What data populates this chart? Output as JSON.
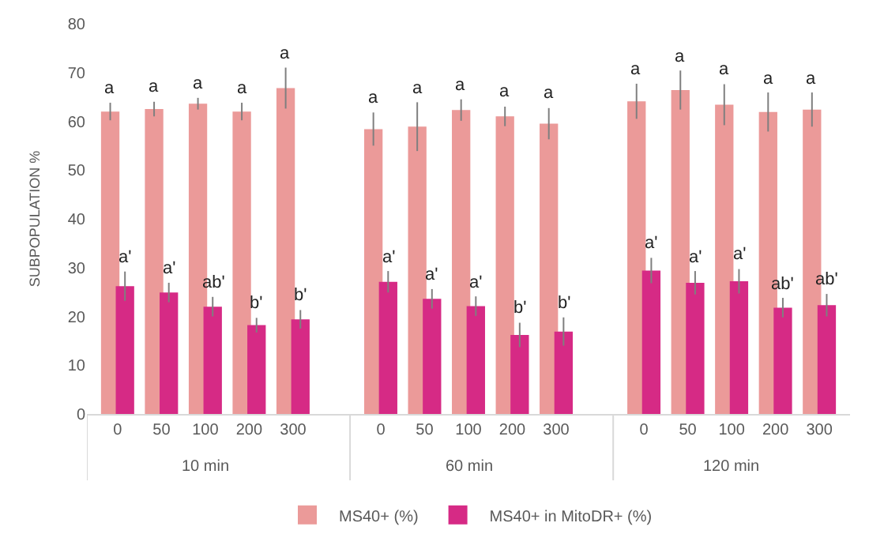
{
  "chart_data": {
    "type": "bar",
    "ylabel": "SUBPOPULATION %",
    "categories": [
      "0",
      "50",
      "100",
      "200",
      "300",
      "0",
      "50",
      "100",
      "200",
      "300",
      "0",
      "50",
      "100",
      "200",
      "300"
    ],
    "annotations": [
      "10 min",
      "60 min",
      "120 min"
    ],
    "series": [
      {
        "name": "MS40+ (%)",
        "color": "#eb9a99",
        "values": [
          62.0,
          62.5,
          63.6,
          62.0,
          66.8,
          58.4,
          58.9,
          62.3,
          61.0,
          59.5,
          64.1,
          66.4,
          63.4,
          61.9,
          62.4
        ],
        "errors": [
          1.8,
          1.5,
          1.2,
          1.8,
          4.2,
          3.4,
          5.0,
          2.2,
          2.0,
          3.2,
          3.6,
          4.0,
          4.2,
          4.0,
          3.5
        ],
        "value_labels": [
          "a",
          "a",
          "a",
          "a",
          "a",
          "a",
          "a",
          "a",
          "a",
          "a",
          "a",
          "a",
          "a",
          "a",
          "a"
        ]
      },
      {
        "name": "MS40+ in MitoDR+ (%)",
        "color": "#d62a85",
        "values": [
          26.2,
          24.9,
          22.0,
          18.2,
          19.4,
          27.1,
          23.6,
          22.1,
          16.2,
          16.9,
          29.4,
          26.9,
          27.2,
          21.8,
          22.3
        ],
        "errors": [
          3.0,
          2.0,
          2.0,
          1.5,
          1.9,
          2.2,
          2.0,
          2.0,
          2.5,
          2.9,
          2.6,
          2.4,
          2.5,
          2.0,
          2.3
        ],
        "value_labels": [
          "a'",
          "a'",
          "ab'",
          "b'",
          "b'",
          "a'",
          "a'",
          "a'",
          "b'",
          "b'",
          "a'",
          "a'",
          "a'",
          "ab'",
          "ab'"
        ]
      }
    ],
    "ylim": [
      0,
      80
    ],
    "yticks": [
      0,
      10,
      20,
      30,
      40,
      50,
      60,
      70,
      80
    ],
    "grid": false,
    "legend": "bottom"
  }
}
